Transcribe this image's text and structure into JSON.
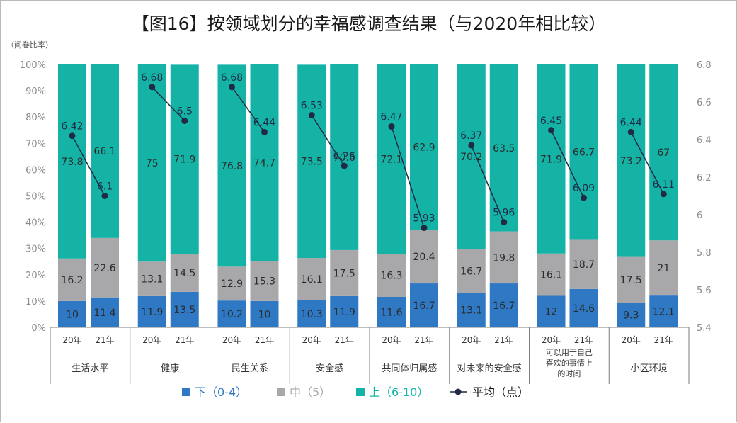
{
  "title": "【图16】按领域划分的幸福感调查结果（与2020年相比较）",
  "left_axis_unit": "（问卷比率）",
  "colors": {
    "low": "#2f78c4",
    "mid": "#a8a8aa",
    "high": "#15b3a6",
    "avg": "#1f2a44"
  },
  "legend": [
    {
      "key": "low",
      "label": "下（0-4）"
    },
    {
      "key": "mid",
      "label": "中（5）"
    },
    {
      "key": "high",
      "label": "上（6-10）"
    },
    {
      "key": "avg",
      "label": "平均（点）"
    }
  ],
  "chart_data": {
    "type": "bar",
    "stacked": true,
    "title": "【图16】按领域划分的幸福感调查结果（与2020年相比较）",
    "ylabel": "（问卷比率）",
    "ylim": [
      0,
      100
    ],
    "y_ticks": [
      "0%",
      "10%",
      "20%",
      "30%",
      "40%",
      "50%",
      "60%",
      "70%",
      "80%",
      "90%",
      "100%"
    ],
    "y2lim": [
      5.4,
      6.8
    ],
    "y2_ticks": [
      "5.4",
      "5.6",
      "5.8",
      "6",
      "6.2",
      "6.4",
      "6.6",
      "6.8"
    ],
    "groups": [
      {
        "label": "生活水平",
        "years": [
          "20年",
          "21年"
        ],
        "low": [
          10,
          11.4
        ],
        "mid": [
          16.2,
          22.6
        ],
        "high": [
          73.8,
          66.1
        ],
        "low_labels": [
          "10",
          "11.4"
        ],
        "mid_labels": [
          "16.2",
          "22.6"
        ],
        "high_labels": [
          "73.8",
          "66.1"
        ],
        "avg": [
          6.42,
          6.1
        ],
        "avg_labels": [
          "6.42",
          "6.1"
        ]
      },
      {
        "label": "健康",
        "years": [
          "20年",
          "21年"
        ],
        "low": [
          11.9,
          13.5
        ],
        "mid": [
          13.1,
          14.5
        ],
        "high": [
          75,
          71.9
        ],
        "low_labels": [
          "11.9",
          "13.5"
        ],
        "mid_labels": [
          "13.1",
          "14.5"
        ],
        "high_labels": [
          "75",
          "71.9"
        ],
        "avg": [
          6.68,
          6.5
        ],
        "avg_labels": [
          "6.68",
          "6.5"
        ]
      },
      {
        "label": "民生关系",
        "years": [
          "20年",
          "21年"
        ],
        "low": [
          10.2,
          10
        ],
        "mid": [
          12.9,
          15.3
        ],
        "high": [
          76.8,
          74.7
        ],
        "low_labels": [
          "10.2",
          "10"
        ],
        "mid_labels": [
          "12.9",
          "15.3"
        ],
        "high_labels": [
          "76.8",
          "74.7"
        ],
        "avg": [
          6.68,
          6.44
        ],
        "avg_labels": [
          "6.68",
          "6.44"
        ]
      },
      {
        "label": "安全感",
        "years": [
          "20年",
          "21年"
        ],
        "low": [
          10.3,
          11.9
        ],
        "mid": [
          16.1,
          17.5
        ],
        "high": [
          73.5,
          70.6
        ],
        "low_labels": [
          "10.3",
          "11.9"
        ],
        "mid_labels": [
          "16.1",
          "17.5"
        ],
        "high_labels": [
          "73.5",
          "70.6"
        ],
        "avg": [
          6.53,
          6.26
        ],
        "avg_labels": [
          "6.53",
          "6.26"
        ]
      },
      {
        "label": "共同体归属感",
        "years": [
          "20年",
          "21年"
        ],
        "low": [
          11.6,
          16.7
        ],
        "mid": [
          16.3,
          20.4
        ],
        "high": [
          72.1,
          62.9
        ],
        "low_labels": [
          "11.6",
          "16.7"
        ],
        "mid_labels": [
          "16.3",
          "20.4"
        ],
        "high_labels": [
          "72.1",
          "62.9"
        ],
        "avg": [
          6.47,
          5.93
        ],
        "avg_labels": [
          "6.47",
          "5.93"
        ]
      },
      {
        "label": "对未来的安全感",
        "years": [
          "20年",
          "21年"
        ],
        "low": [
          13.1,
          16.7
        ],
        "mid": [
          16.7,
          19.8
        ],
        "high": [
          70.2,
          63.5
        ],
        "low_labels": [
          "13.1",
          "16.7"
        ],
        "mid_labels": [
          "16.7",
          "19.8"
        ],
        "high_labels": [
          "70.2",
          "63.5"
        ],
        "avg": [
          6.37,
          5.96
        ],
        "avg_labels": [
          "6.37",
          "5.96"
        ]
      },
      {
        "label": "可以用于自己喜欢的事情上的时间",
        "label_lines": [
          "可以用于自己",
          "喜欢的事情上",
          "的时间"
        ],
        "years": [
          "20年",
          "21年"
        ],
        "low": [
          12,
          14.6
        ],
        "mid": [
          16.1,
          18.7
        ],
        "high": [
          71.9,
          66.7
        ],
        "low_labels": [
          "12",
          "14.6"
        ],
        "mid_labels": [
          "16.1",
          "18.7"
        ],
        "high_labels": [
          "71.9",
          "66.7"
        ],
        "avg": [
          6.45,
          6.09
        ],
        "avg_labels": [
          "6.45",
          "6.09"
        ]
      },
      {
        "label": "小区环境",
        "years": [
          "20年",
          "21年"
        ],
        "low": [
          9.3,
          12.1
        ],
        "mid": [
          17.5,
          21
        ],
        "high": [
          73.2,
          67
        ],
        "low_labels": [
          "9.3",
          "12.1"
        ],
        "mid_labels": [
          "17.5",
          "21"
        ],
        "high_labels": [
          "73.2",
          "67"
        ],
        "avg": [
          6.44,
          6.11
        ],
        "avg_labels": [
          "6.44",
          "6.11"
        ]
      }
    ],
    "legend_position": "bottom",
    "grid": false
  }
}
